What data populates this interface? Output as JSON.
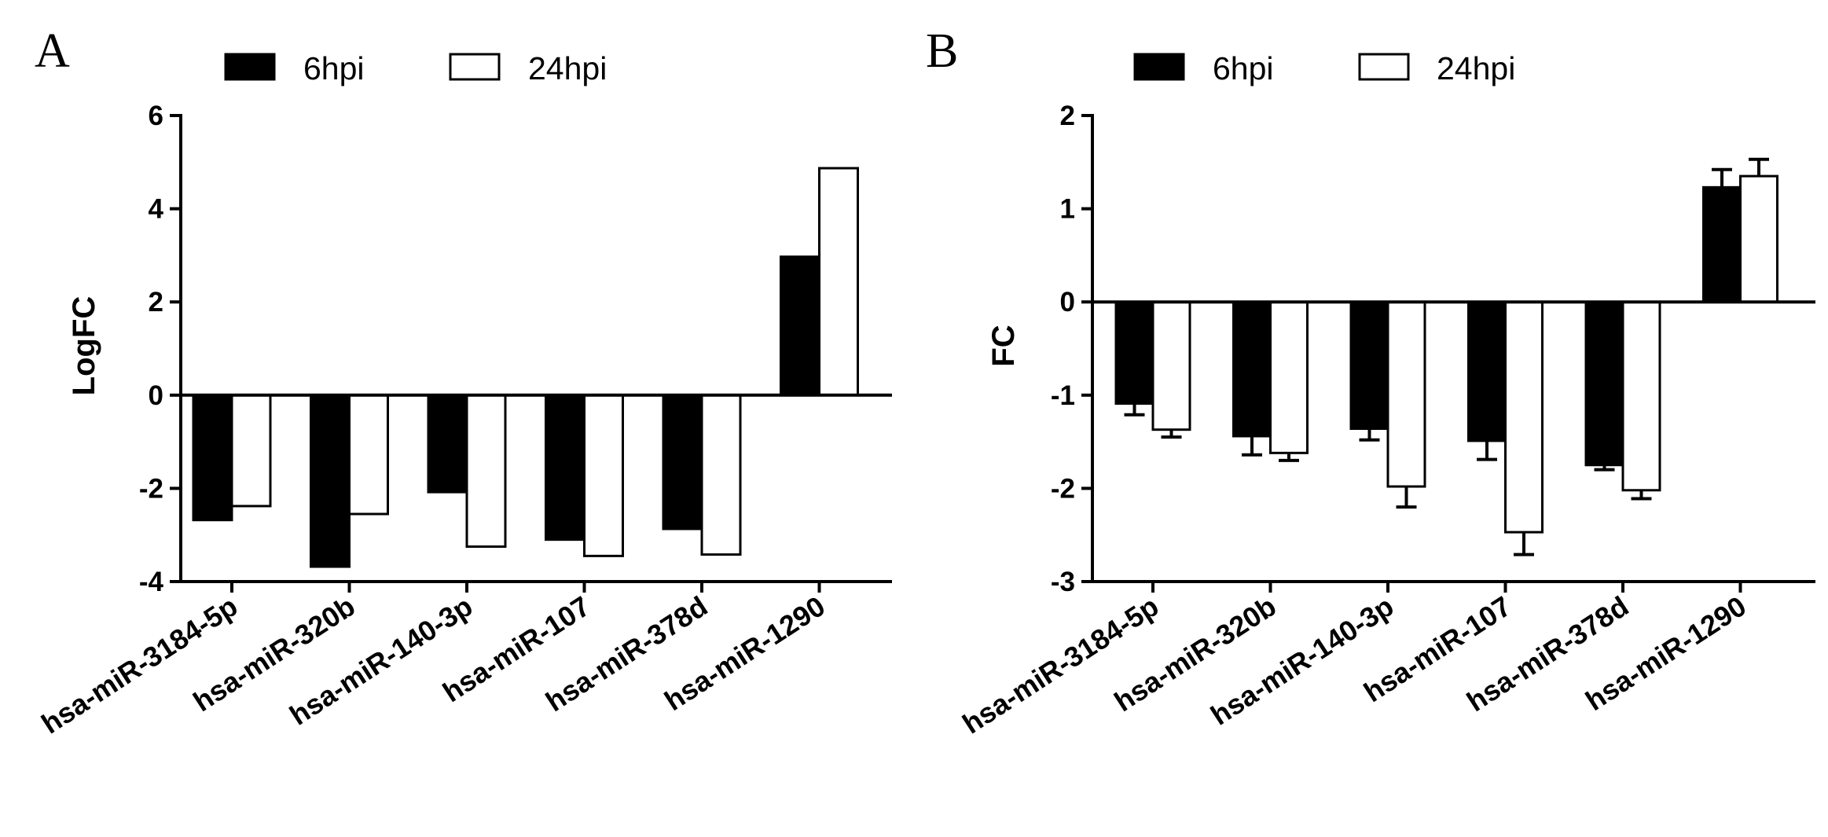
{
  "chart_data": [
    {
      "type": "bar",
      "panel_label": "A",
      "ylabel": "LogFC",
      "xlabel": "",
      "ylim": [
        -4,
        6
      ],
      "yticks": [
        -4,
        -2,
        0,
        2,
        4,
        6
      ],
      "categories": [
        "hsa-miR-3184-5p",
        "hsa-miR-320b",
        "hsa-miR-140-3p",
        "hsa-miR-107",
        "hsa-miR-378d",
        "hsa-miR-1290"
      ],
      "series": [
        {
          "name": "6hpi",
          "fill": "#000000",
          "values": [
            -2.68,
            -3.68,
            -2.08,
            -3.1,
            -2.87,
            2.97
          ]
        },
        {
          "name": "24hpi",
          "fill": "#ffffff",
          "values": [
            -2.38,
            -2.55,
            -3.25,
            -3.45,
            -3.42,
            4.87
          ]
        }
      ]
    },
    {
      "type": "bar",
      "panel_label": "B",
      "ylabel": "FC",
      "xlabel": "",
      "ylim": [
        -3,
        2
      ],
      "yticks": [
        -3,
        -2,
        -1,
        0,
        1,
        2
      ],
      "categories": [
        "hsa-miR-3184-5p",
        "hsa-miR-320b",
        "hsa-miR-140-3p",
        "hsa-miR-107",
        "hsa-miR-378d",
        "hsa-miR-1290"
      ],
      "series": [
        {
          "name": "6hpi",
          "fill": "#000000",
          "values": [
            -1.09,
            -1.44,
            -1.36,
            -1.49,
            -1.75,
            1.23
          ],
          "errors": [
            0.12,
            0.2,
            0.12,
            0.2,
            0.05,
            0.19
          ]
        },
        {
          "name": "24hpi",
          "fill": "#ffffff",
          "values": [
            -1.37,
            -1.62,
            -1.98,
            -2.47,
            -2.02,
            1.35
          ],
          "errors": [
            0.08,
            0.08,
            0.22,
            0.24,
            0.09,
            0.18
          ]
        }
      ]
    }
  ]
}
